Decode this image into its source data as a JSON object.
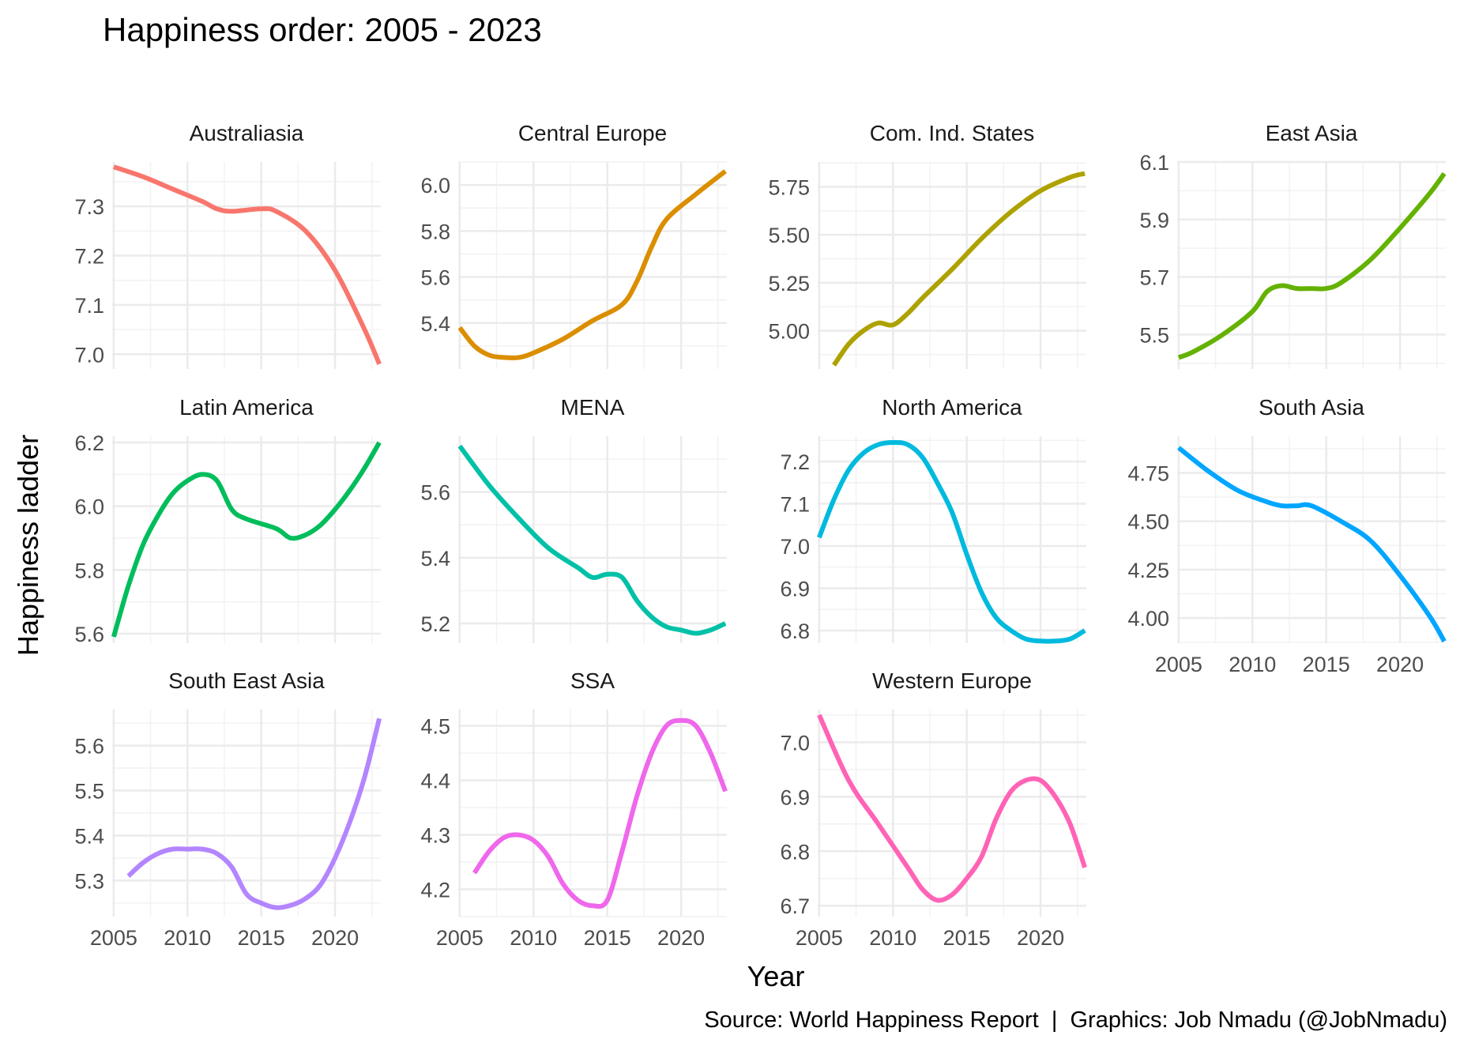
{
  "chart_data": {
    "type": "line",
    "title": "Happiness order: 2005 - 2023",
    "xlabel": "Year",
    "ylabel": "Happiness ladder",
    "caption": "Source: World Happiness Report  |  Graphics: Job Nmadu (@JobNmadu)",
    "grid": true,
    "legend": "none",
    "xlim": [
      2004.9,
      2023.1
    ],
    "x_ticks": [
      2005,
      2010,
      2015,
      2020
    ],
    "x_tick_labels": [
      "2005",
      "2010",
      "2015",
      "2020"
    ],
    "facets": [
      {
        "name": "Australiasia",
        "color": "#F8766D",
        "ylim": [
          6.97,
          7.39
        ],
        "y_ticks": [
          7.0,
          7.1,
          7.2,
          7.3
        ],
        "y_tick_labels": [
          "7.0",
          "7.1",
          "7.2",
          "7.3"
        ],
        "x": [
          2005,
          2007,
          2009,
          2011,
          2012,
          2013,
          2015,
          2016,
          2018,
          2020,
          2022,
          2023
        ],
        "values": [
          7.38,
          7.36,
          7.335,
          7.31,
          7.295,
          7.29,
          7.295,
          7.29,
          7.25,
          7.17,
          7.05,
          6.98
        ]
      },
      {
        "name": "Central Europe",
        "color": "#DB8E00",
        "ylim": [
          5.2,
          6.1
        ],
        "y_ticks": [
          5.4,
          5.6,
          5.8,
          6.0
        ],
        "y_tick_labels": [
          "5.4",
          "5.6",
          "5.8",
          "6.0"
        ],
        "x": [
          2005,
          2006,
          2007,
          2008,
          2009,
          2010,
          2012,
          2014,
          2016,
          2017,
          2018,
          2019,
          2021,
          2023
        ],
        "values": [
          5.38,
          5.3,
          5.26,
          5.25,
          5.25,
          5.27,
          5.33,
          5.41,
          5.48,
          5.58,
          5.73,
          5.85,
          5.96,
          6.06
        ]
      },
      {
        "name": "Com. Ind. States",
        "color": "#AEA200",
        "ylim": [
          4.8,
          5.88
        ],
        "y_ticks": [
          5.0,
          5.25,
          5.5,
          5.75
        ],
        "y_tick_labels": [
          "5.00",
          "5.25",
          "5.50",
          "5.75"
        ],
        "x": [
          2006,
          2007,
          2008,
          2009,
          2010,
          2011,
          2012,
          2014,
          2016,
          2018,
          2020,
          2022,
          2023
        ],
        "values": [
          4.82,
          4.93,
          5.0,
          5.04,
          5.03,
          5.09,
          5.17,
          5.32,
          5.48,
          5.62,
          5.73,
          5.8,
          5.82
        ]
      },
      {
        "name": "East Asia",
        "color": "#64B200",
        "ylim": [
          5.38,
          6.1
        ],
        "y_ticks": [
          5.5,
          5.7,
          5.9,
          6.1
        ],
        "y_tick_labels": [
          "5.5",
          "5.7",
          "5.9",
          "6.1"
        ],
        "x": [
          2005,
          2006,
          2008,
          2010,
          2011,
          2012,
          2013,
          2014,
          2015,
          2016,
          2018,
          2020,
          2022,
          2023
        ],
        "values": [
          5.42,
          5.44,
          5.5,
          5.58,
          5.65,
          5.67,
          5.66,
          5.66,
          5.66,
          5.68,
          5.76,
          5.87,
          5.99,
          6.06
        ]
      },
      {
        "name": "Latin America",
        "color": "#00BD5C",
        "ylim": [
          5.57,
          6.22
        ],
        "y_ticks": [
          5.6,
          5.8,
          6.0,
          6.2
        ],
        "y_tick_labels": [
          "5.6",
          "5.8",
          "6.0",
          "6.2"
        ],
        "x": [
          2005,
          2006,
          2007,
          2008,
          2009,
          2010,
          2011,
          2012,
          2013,
          2014,
          2016,
          2017,
          2018,
          2019,
          2020,
          2021,
          2022,
          2023
        ],
        "values": [
          5.59,
          5.75,
          5.88,
          5.97,
          6.04,
          6.08,
          6.1,
          6.08,
          5.99,
          5.96,
          5.93,
          5.9,
          5.91,
          5.94,
          5.99,
          6.05,
          6.12,
          6.2
        ]
      },
      {
        "name": "MENA",
        "color": "#00C1A7",
        "ylim": [
          5.14,
          5.77
        ],
        "y_ticks": [
          5.2,
          5.4,
          5.6
        ],
        "y_tick_labels": [
          "5.2",
          "5.4",
          "5.6"
        ],
        "x": [
          2005,
          2007,
          2009,
          2011,
          2013,
          2014,
          2015,
          2016,
          2017,
          2018,
          2019,
          2020,
          2021,
          2022,
          2023
        ],
        "values": [
          5.74,
          5.62,
          5.52,
          5.43,
          5.37,
          5.34,
          5.35,
          5.34,
          5.27,
          5.22,
          5.19,
          5.18,
          5.17,
          5.18,
          5.2
        ]
      },
      {
        "name": "North America",
        "color": "#00BADE",
        "ylim": [
          6.77,
          7.26
        ],
        "y_ticks": [
          6.8,
          6.9,
          7.0,
          7.1,
          7.2
        ],
        "y_tick_labels": [
          "6.8",
          "6.9",
          "7.0",
          "7.1",
          "7.2"
        ],
        "x": [
          2005,
          2006,
          2007,
          2008,
          2009,
          2010,
          2011,
          2012,
          2013,
          2014,
          2015,
          2016,
          2017,
          2018,
          2019,
          2020,
          2021,
          2022,
          2023
        ],
        "values": [
          7.02,
          7.11,
          7.18,
          7.22,
          7.24,
          7.245,
          7.24,
          7.21,
          7.15,
          7.08,
          6.98,
          6.89,
          6.83,
          6.8,
          6.78,
          6.775,
          6.775,
          6.78,
          6.8
        ]
      },
      {
        "name": "South Asia",
        "color": "#00A6FF",
        "ylim": [
          3.87,
          4.94
        ],
        "y_ticks": [
          4.0,
          4.25,
          4.5,
          4.75
        ],
        "y_tick_labels": [
          "4.00",
          "4.25",
          "4.50",
          "4.75"
        ],
        "x": [
          2005,
          2007,
          2009,
          2011,
          2012,
          2013,
          2014,
          2016,
          2018,
          2020,
          2022,
          2023
        ],
        "values": [
          4.88,
          4.76,
          4.66,
          4.6,
          4.58,
          4.58,
          4.58,
          4.5,
          4.4,
          4.22,
          4.01,
          3.88
        ]
      },
      {
        "name": "South East Asia",
        "color": "#B385FF",
        "ylim": [
          5.22,
          5.68
        ],
        "y_ticks": [
          5.3,
          5.4,
          5.5,
          5.6
        ],
        "y_tick_labels": [
          "5.3",
          "5.4",
          "5.5",
          "5.6"
        ],
        "x": [
          2006,
          2007,
          2008,
          2009,
          2010,
          2011,
          2012,
          2013,
          2014,
          2015,
          2016,
          2017,
          2018,
          2019,
          2020,
          2021,
          2022,
          2023
        ],
        "values": [
          5.31,
          5.34,
          5.36,
          5.37,
          5.37,
          5.37,
          5.36,
          5.33,
          5.27,
          5.25,
          5.24,
          5.245,
          5.26,
          5.29,
          5.35,
          5.43,
          5.53,
          5.66
        ]
      },
      {
        "name": "SSA",
        "color": "#EF67EB",
        "ylim": [
          4.15,
          4.53
        ],
        "y_ticks": [
          4.2,
          4.3,
          4.4,
          4.5
        ],
        "y_tick_labels": [
          "4.2",
          "4.3",
          "4.4",
          "4.5"
        ],
        "x": [
          2006,
          2007,
          2008,
          2009,
          2010,
          2011,
          2012,
          2013,
          2014,
          2015,
          2016,
          2017,
          2018,
          2019,
          2020,
          2021,
          2022,
          2023
        ],
        "values": [
          4.23,
          4.27,
          4.295,
          4.3,
          4.29,
          4.26,
          4.21,
          4.18,
          4.17,
          4.18,
          4.27,
          4.37,
          4.45,
          4.5,
          4.51,
          4.5,
          4.45,
          4.38
        ]
      },
      {
        "name": "Western Europe",
        "color": "#FF63B6",
        "ylim": [
          6.68,
          7.06
        ],
        "y_ticks": [
          6.7,
          6.8,
          6.9,
          7.0
        ],
        "y_tick_labels": [
          "6.7",
          "6.8",
          "6.9",
          "7.0"
        ],
        "x": [
          2005,
          2007,
          2009,
          2011,
          2012,
          2013,
          2014,
          2015,
          2016,
          2017,
          2018,
          2019,
          2020,
          2021,
          2022,
          2023
        ],
        "values": [
          7.05,
          6.93,
          6.85,
          6.77,
          6.73,
          6.71,
          6.72,
          6.75,
          6.79,
          6.86,
          6.91,
          6.93,
          6.93,
          6.9,
          6.85,
          6.77
        ]
      }
    ]
  }
}
